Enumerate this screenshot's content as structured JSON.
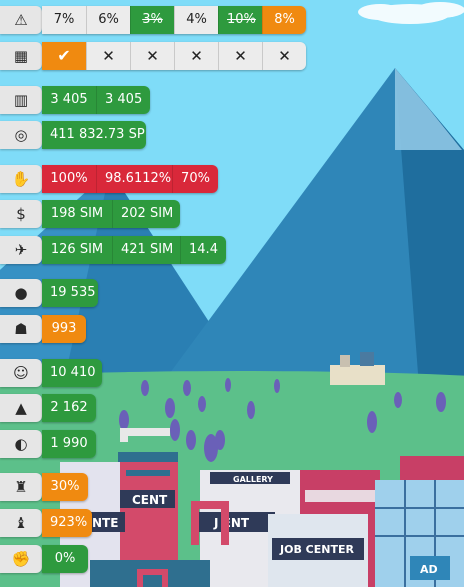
{
  "colors": {
    "sky": "#7fdcf8",
    "green": "#2e9a3e",
    "orange": "#f08a10",
    "red": "#d9283a",
    "tab_grey": "#e6e6e6",
    "mountain": "#2f86b8",
    "grass": "#5cc08a"
  },
  "rows": [
    {
      "icon": "warning-icon",
      "glyph": "⚠",
      "cells": [
        {
          "text": "7%",
          "style": "w"
        },
        {
          "text": "6%",
          "style": "w"
        },
        {
          "text": "3%",
          "style": "g",
          "strike": true
        },
        {
          "text": "4%",
          "style": "w"
        },
        {
          "text": "10%",
          "style": "g",
          "strike": true
        },
        {
          "text": "8%",
          "style": "o"
        }
      ]
    },
    {
      "icon": "calendar-icon",
      "glyph": "▦",
      "cells": [
        {
          "text": "✔",
          "style": "o"
        },
        {
          "text": "✕",
          "style": "w"
        },
        {
          "text": "✕",
          "style": "w"
        },
        {
          "text": "✕",
          "style": "w"
        },
        {
          "text": "✕",
          "style": "w"
        },
        {
          "text": "✕",
          "style": "w"
        }
      ]
    },
    {
      "icon": "building-icon",
      "glyph": "▥",
      "cells": [
        {
          "text": "3 405",
          "style": "g"
        },
        {
          "text": "3 405",
          "style": "g"
        }
      ]
    },
    {
      "icon": "coins-icon",
      "glyph": "◎",
      "cells": [
        {
          "text": "411 832.73 SP",
          "style": "g"
        }
      ]
    },
    {
      "icon": "hand-holding-dollar-icon",
      "glyph": "✋",
      "cells": [
        {
          "text": "100%",
          "style": "r"
        },
        {
          "text": "98.6112%",
          "style": "r"
        },
        {
          "text": "70%",
          "style": "r"
        }
      ]
    },
    {
      "icon": "dollar-icon",
      "glyph": "$",
      "cells": [
        {
          "text": "198 SIM",
          "style": "g"
        },
        {
          "text": "202 SIM",
          "style": "g"
        }
      ]
    },
    {
      "icon": "plane-icon",
      "glyph": "✈",
      "cells": [
        {
          "text": "126 SIM",
          "style": "g"
        },
        {
          "text": "421 SIM",
          "style": "g"
        },
        {
          "text": "14.4",
          "style": "g"
        }
      ]
    },
    {
      "icon": "person-icon",
      "glyph": "●",
      "cells": [
        {
          "text": "19 535",
          "style": "g"
        }
      ]
    },
    {
      "icon": "people-group-icon",
      "glyph": "☗",
      "cells": [
        {
          "text": "993",
          "style": "o"
        }
      ]
    },
    {
      "icon": "smile-icon",
      "glyph": "☺",
      "cells": [
        {
          "text": "10 410",
          "style": "g"
        }
      ]
    },
    {
      "icon": "graduation-cap-icon",
      "glyph": "▲",
      "cells": [
        {
          "text": "2 162",
          "style": "g"
        }
      ]
    },
    {
      "icon": "palette-icon",
      "glyph": "◐",
      "cells": [
        {
          "text": "1 990",
          "style": "g"
        }
      ]
    },
    {
      "icon": "worker-icon",
      "glyph": "♜",
      "cells": [
        {
          "text": "30%",
          "style": "o"
        }
      ]
    },
    {
      "icon": "graduate-person-icon",
      "glyph": "♝",
      "cells": [
        {
          "text": "923%",
          "style": "o"
        }
      ]
    },
    {
      "icon": "fist-icon",
      "glyph": "✊",
      "cells": [
        {
          "text": "0%",
          "style": "g"
        }
      ]
    }
  ],
  "scene_signs": {
    "gallery": "GALLERY",
    "job_center": "JOB CENTER",
    "ad": "AD",
    "center_fragment_1": "CENT",
    "center_fragment_2": "NTE",
    "center_fragment_3": "J  ENT"
  }
}
